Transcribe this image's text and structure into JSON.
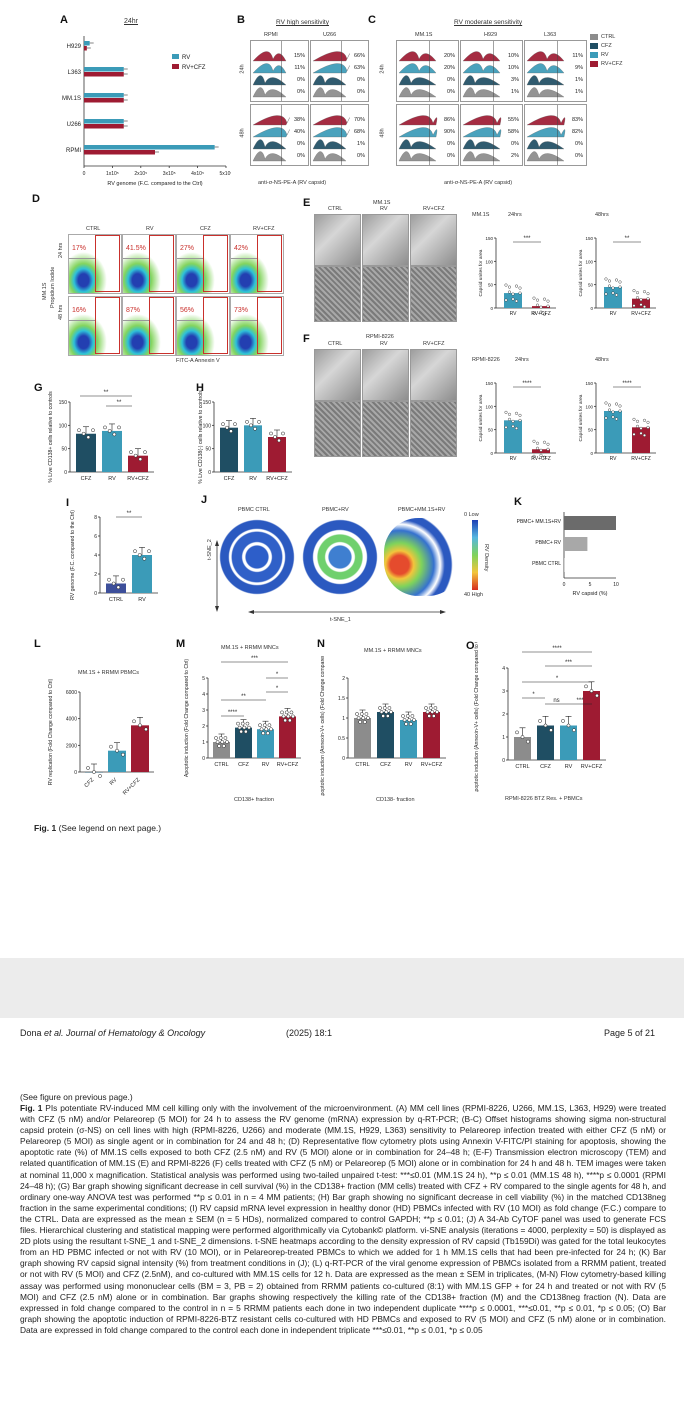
{
  "colors": {
    "ctrl": "#8c8c8c",
    "cfz": "#1f4e63",
    "rv": "#3b9bb8",
    "rvcfz": "#9e1b32",
    "accent_red": "#c9302c"
  },
  "panelA": {
    "letter": "A",
    "title": "24hr",
    "categories": [
      "H929",
      "L363",
      "MM.1S",
      "U266",
      "RPMI"
    ],
    "legend": [
      "RV",
      "RV+CFZ"
    ],
    "xticks": [
      "0",
      "1x10⁵",
      "2x10⁵",
      "3x10⁵",
      "4x10⁵",
      "5x10⁵"
    ],
    "xlabel": "RV genome  (F.C. compared to the Ctrl)"
  },
  "panelB": {
    "letter": "B",
    "title": "RV high sensitivity",
    "cols": [
      "RPMI",
      "U266"
    ],
    "rows": [
      "24h",
      "48h"
    ],
    "vals": [
      [
        "0%",
        "0%",
        "11%",
        "15%"
      ],
      [
        "0%",
        "0%",
        "63%",
        "66%"
      ],
      [
        "0%",
        "0%",
        "40%",
        "38%"
      ],
      [
        "0%",
        "1%",
        "68%",
        "70%"
      ]
    ],
    "xlabel": "anti-σ-NS-PE-A (RV capsid)"
  },
  "panelC": {
    "letter": "C",
    "title": "RV moderate sensitivity",
    "cols": [
      "MM.1S",
      "H929",
      "L363"
    ],
    "vals": [
      [
        "0%",
        "0%",
        "20%",
        "20%"
      ],
      [
        "1%",
        "3%",
        "10%",
        "10%"
      ],
      [
        "1%",
        "1%",
        "9%",
        "11%"
      ],
      [
        "0%",
        "0%",
        "90%",
        "86%"
      ],
      [
        "2%",
        "0%",
        "58%",
        "55%"
      ],
      [
        "0%",
        "0%",
        "82%",
        "83%"
      ]
    ],
    "legend": [
      "CTRL",
      "CFZ",
      "RV",
      "RV+CFZ"
    ],
    "xlabel": "anti-σ-NS-PE-A (RV capsid)"
  },
  "panelD": {
    "letter": "D",
    "cols": [
      "CTRL",
      "RV",
      "CFZ",
      "RV+CFZ"
    ],
    "rows": [
      "24 hrs",
      "48 hrs"
    ],
    "ylabel1": "MM.1S",
    "ylabel2": "Propidium Iodide",
    "vals": [
      "17%",
      "41.5%",
      "27%",
      "42%",
      "16%",
      "87%",
      "56%",
      "73%"
    ],
    "xlabel": "FITC-A Annexin V"
  },
  "panelE": {
    "letter": "E",
    "title": "MM.1S",
    "cols": [
      "CTRL",
      "RV",
      "RV+CFZ"
    ],
    "chart_title": "MM.1S",
    "t1": "24hrs",
    "t2": "48hrs",
    "ylabel": "Capsid unites for area",
    "stars1": "***",
    "stars2": "**",
    "cats": [
      "RV",
      "RV+CFZ"
    ]
  },
  "panelF": {
    "letter": "F",
    "title": "RPMI-8226",
    "cols": [
      "CTRL",
      "RV",
      "RV+CFZ"
    ],
    "chart_title": "RPMI-8226",
    "t1": "24hrs",
    "t2": "48hrs",
    "ylabel": "Capsid unites for area",
    "stars1": "****",
    "stars2": "****",
    "cats": [
      "RV",
      "RV+CFZ"
    ]
  },
  "panelG": {
    "letter": "G",
    "ylabel": "% Live CD138+ cells relative to controls",
    "cats": [
      "CFZ",
      "RV",
      "RV+CFZ"
    ],
    "stars": [
      "**",
      "**"
    ]
  },
  "panelH": {
    "letter": "H",
    "ylabel": "% Live CD138(-) cells relative to controls",
    "cats": [
      "CFZ",
      "RV",
      "RV+CFZ"
    ]
  },
  "panelI": {
    "letter": "I",
    "ylabel": "RV genome (F.C. compared to the Ctrl)",
    "cats": [
      "CTRL",
      "RV"
    ],
    "stars": "**"
  },
  "panelJ": {
    "letter": "J",
    "titles": [
      "PBMC CTRL",
      "PBMC+RV",
      "PBMC+MM.1S+RV"
    ],
    "xlabel": "t-SNE_1",
    "ylabel": "t-SNE_2",
    "scale_low": "0 Low",
    "scale_high": "40 High",
    "scale_label": "RV Density"
  },
  "panelK": {
    "letter": "K",
    "cats": [
      "PBMC+ MM.1S+RV",
      "PBMC+ RV",
      "PBMC CTRL"
    ],
    "xticks": [
      "0",
      "5",
      "10"
    ],
    "xlabel": "RV capsid (%)"
  },
  "panelL": {
    "letter": "L",
    "title": "MM.1S + RRMM PBMCs",
    "ylabel": "RV replication (Fold Change compared to Ctrl)",
    "cats": [
      "CFZ",
      "RV",
      "RV+CFZ"
    ]
  },
  "panelM": {
    "letter": "M",
    "title": "MM.1S + RRMM MNCs",
    "ylabel": "Apoptotic induction (Fold Change compared to Ctrl)",
    "cats": [
      "CTRL",
      "CFZ",
      "RV",
      "RV+CFZ"
    ],
    "xlabel": "CD138+ fraction",
    "stars": [
      "***",
      "*",
      "**",
      "****",
      "*"
    ]
  },
  "panelN": {
    "letter": "N",
    "title": "MM.1S + RRMM MNCs",
    "ylabel": "Apoptotic induction (Annexin-V+ cells) (Fold Change compared to Ctrl)",
    "cats": [
      "CTRL",
      "CFZ",
      "RV",
      "RV+CFZ"
    ],
    "xlabel": "CD138- fraction"
  },
  "panelO": {
    "letter": "O",
    "ylabel": "Apoptotic induction (Annexin-V+ cells) (Fold Change compared to Ctrl)",
    "cats": [
      "CTRL",
      "CFZ",
      "RV",
      "RV+CFZ"
    ],
    "xlabel": "RPMI-8226 BTZ Res. + PBMCs",
    "stars": [
      "****",
      "***",
      "*",
      "*",
      "ns",
      "***"
    ]
  },
  "caption": {
    "bold": "Fig. 1",
    "text": " (See legend on next page.)"
  },
  "footer": {
    "author": "Dona ",
    "etal": "et al. Journal of Hematology & Oncology",
    "year": "(2025) 18:1",
    "page": "Page 5 of 21"
  },
  "legend": {
    "see": "(See figure on previous page.)",
    "bold": "Fig. 1",
    "text": " PIs potentiate RV-induced MM cell killing only with the involvement of the microenvironment. (A) MM cell lines (RPMI-8226, U266, MM.1S, L363, H929) were treated with CFZ (5 nM) and/or Pelareorep (5 MOI) for 24 h to assess the RV genome (mRNA) expression by q-RT-PCR; (B-C) Offset histograms showing sigma non-structural capsid protein (σ-NS) on cell lines with high (RPMI-8226, U266) and moderate (MM.1S, H929, L363) sensitivity to Pelareorep infection treated with either CFZ (5 nM) or Pelareorep (5 MOI) as single agent or in combination for 24 and 48 h; (D) Representative flow cytometry plots using Annexin V-FITC/PI staining for apoptosis, showing the apoptotic rate (%) of MM.1S cells exposed to both CFZ (2.5 nM) and RV (5 MOI) alone or in combination for 24–48 h; (E-F) Transmission electron microscopy (TEM) and related quantification of MM.1S (E) and RPMI-8226 (F) cells treated with CFZ (5 nM) or Pelareorep (5 MOI) alone or in combination for 24 h and 48 h. TEM images were taken at nominal 11,000 x magnification. Statistical analysis was performed using two-tailed unpaired t-test: ***≤0.01 (MM.1S 24 h), **p ≤ 0.01 (MM.1S 48 h), ****p ≤ 0.0001 (RPMI 24–48 h); (G) Bar graph showing significant decrease in cell survival (%) in the CD138+ fraction (MM cells) treated with CFZ + RV compared to the single agents for 48 h, and ordinary one-way ANOVA test was performed **p ≤ 0.01 in n = 4 MM patients; (H) Bar graph showing no significant decrease in cell viability (%) in the matched CD138neg fraction in the same experimental conditions; (I) RV capsid mRNA level expression in healthy donor (HD) PBMCs infected with RV (10 MOI) as fold change (F.C.) compare to the CTRL. Data are expressed as the mean ± SEM (n = 5 HDs), normalized compared to control GAPDH; **p ≤ 0.01; (J) A 34-Ab CyTOF panel was used to generate FCS files. Hierarchical clustering and statistical mapping were performed algorithmically via Cytobank© platform. vi-SNE analysis (iterations = 4000, perplexity = 50) is displayed as 2D plots using the resultant t-SNE_1 and t-SNE_2 dimensions. t-SNE heatmaps according to the density expression of RV capsid (Tb159Di) was gated for the total leukocytes from an HD PBMC infected or not with RV (10 MOI), or in Pelareorep-treated PBMCs to which we added for 1 h MM.1S cells that had been pre-infected for 24 h; (K) Bar graph showing RV capsid signal intensity (%) from treatment conditions in (J); (L) q-RT-PCR of the viral genome expression of PBMCs isolated from a RRMM patient, treated or not with RV (5 MOI) and CFZ (2.5nM), and co-cultured with MM.1S cells for 12 h. Data are expressed as the mean ± SEM in triplicates, (M-N) Flow cytometry-based killing assay was performed using mononuclear cells (BM = 3, PB = 2) obtained from RRMM patients co-cultured (8:1) with MM.1S GFP + for 24 h and treated or not with RV (5 MOI) and CFZ (2.5 nM) alone or in combination. Bar graphs showing respectively the killing rate of the CD138+ fraction (M) and the CD138neg fraction (N). Data are expressed in fold change compared to the control in n = 5 RRMM patients each done in two independent duplicate ****p ≤ 0.0001, ***≤0.01, **p ≤ 0.01, *p ≤ 0.05; (O) Bar graph showing the apoptotic induction of RPMI-8226-BTZ resistant cells co-cultured with HD PBMCs and exposed to RV (5 MOI) and CFZ (5 nM) alone or in combination. Data are expressed in fold change compared to the control each done in independent triplicate ***≤0.01, **p ≤ 0.01, *p ≤ 0.05"
  },
  "chart_data": [
    {
      "type": "bar",
      "title": "24hr",
      "categories": [
        "H929",
        "L363",
        "MM.1S",
        "U266",
        "RPMI"
      ],
      "series": [
        {
          "name": "RV",
          "values": [
            20000,
            140000,
            140000,
            140000,
            460000
          ]
        },
        {
          "name": "RV+CFZ",
          "values": [
            10000,
            140000,
            140000,
            140000,
            250000
          ]
        }
      ],
      "xlabel": "RV genome  (F.C. compared to the Ctrl)",
      "xlim": [
        0,
        500000
      ]
    },
    {
      "type": "bar",
      "categories": [
        "CFZ",
        "RV",
        "RV+CFZ"
      ],
      "series": [
        {
          "values": [
            82,
            88,
            35
          ]
        }
      ],
      "ylim": [
        0,
        150
      ]
    },
    {
      "type": "bar",
      "categories": [
        "CFZ",
        "RV",
        "RV+CFZ"
      ],
      "series": [
        {
          "values": [
            95,
            100,
            75
          ]
        }
      ],
      "ylim": [
        0,
        150
      ]
    },
    {
      "type": "bar",
      "categories": [
        "CTRL",
        "RV"
      ],
      "series": [
        {
          "values": [
            1,
            4
          ]
        }
      ],
      "ylim": [
        0,
        8
      ]
    },
    {
      "type": "bar",
      "categories": [
        "PBMC+ MM.1S+RV",
        "PBMC+ RV",
        "PBMC CTRL"
      ],
      "series": [
        {
          "values": [
            10,
            4.5,
            0
          ]
        }
      ],
      "xlim": [
        0,
        10
      ],
      "xlabel": "RV capsid (%)"
    },
    {
      "type": "bar",
      "categories": [
        "CFZ",
        "RV",
        "RV+CFZ"
      ],
      "series": [
        {
          "values": [
            0,
            1600,
            3500
          ]
        }
      ],
      "ylim": [
        0,
        6000
      ]
    },
    {
      "type": "bar",
      "categories": [
        "CTRL",
        "CFZ",
        "RV",
        "RV+CFZ"
      ],
      "series": [
        {
          "values": [
            1,
            1.9,
            1.8,
            2.6
          ]
        }
      ],
      "ylim": [
        0,
        5
      ]
    },
    {
      "type": "bar",
      "categories": [
        "CTRL",
        "CFZ",
        "RV",
        "RV+CFZ"
      ],
      "series": [
        {
          "values": [
            1,
            1.15,
            0.95,
            1.15
          ]
        }
      ],
      "ylim": [
        0,
        2
      ]
    },
    {
      "type": "bar",
      "categories": [
        "CTRL",
        "CFZ",
        "RV",
        "RV+CFZ"
      ],
      "series": [
        {
          "values": [
            1,
            1.5,
            1.5,
            3
          ]
        }
      ],
      "ylim": [
        0,
        4
      ]
    }
  ]
}
